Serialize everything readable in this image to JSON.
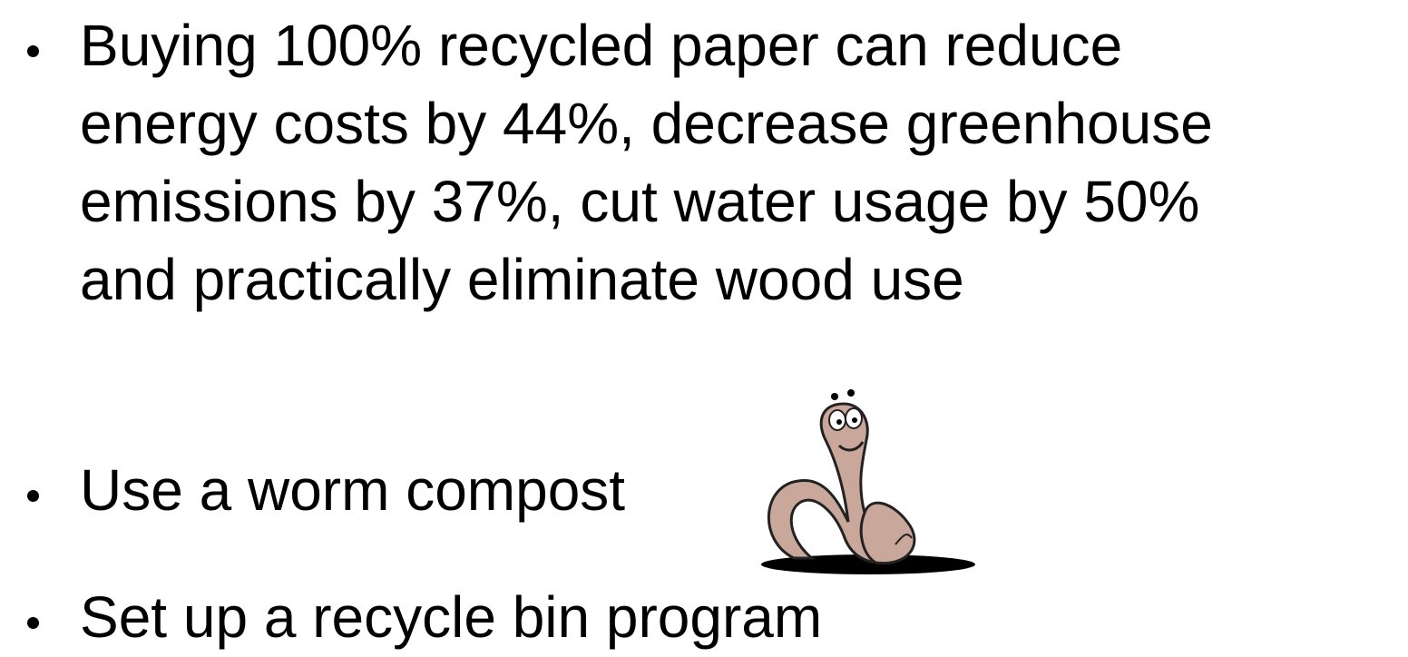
{
  "bullets": [
    [
      "Buying 100% recycled paper can reduce",
      "energy costs by 44%, decrease greenhouse",
      "emissions by 37%, cut water usage by 50%",
      "and practically eliminate wood use"
    ],
    [
      "Use a worm compost"
    ],
    [
      "Set up a recycle bin program"
    ]
  ]
}
